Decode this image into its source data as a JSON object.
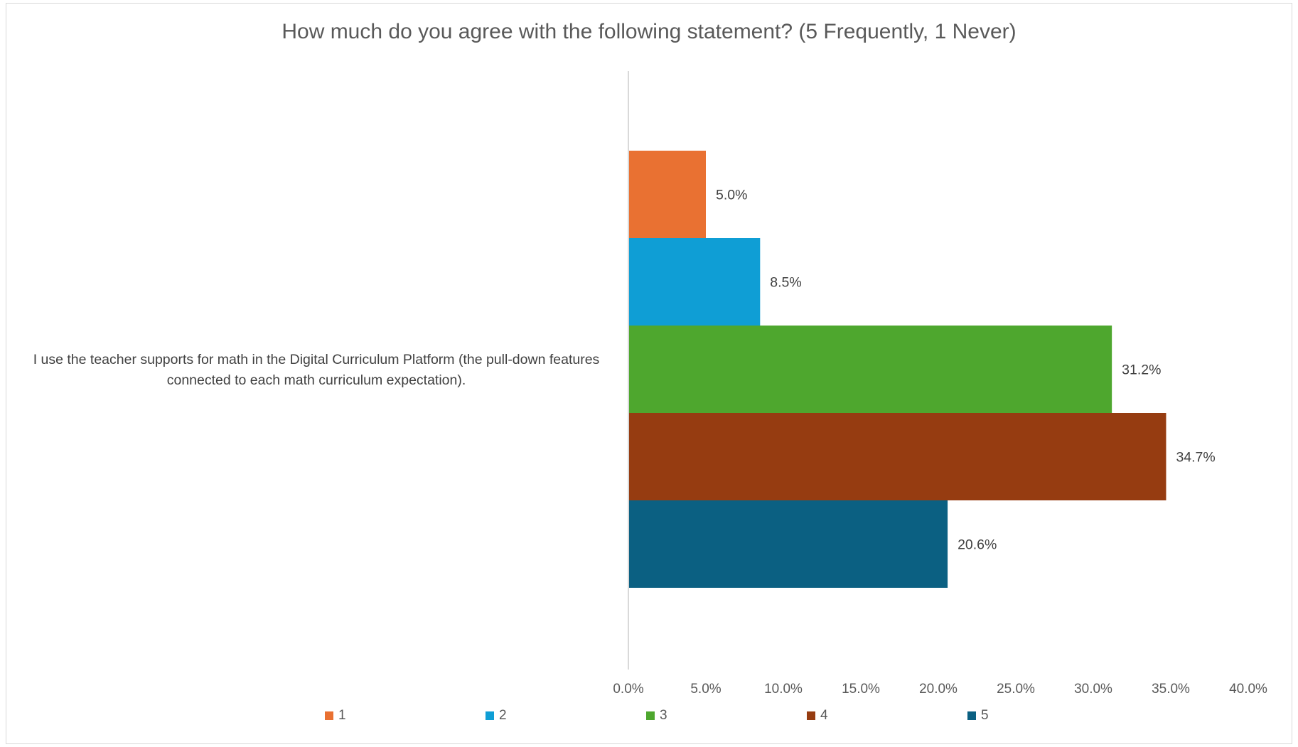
{
  "chart_data": {
    "type": "bar",
    "orientation": "horizontal",
    "title": "How much do you agree with the following statement? (5 Frequently, 1 Never)",
    "categories": [
      "I use the teacher supports for math in the Digital Curriculum Platform (the pull-down features connected to each math curriculum expectation)."
    ],
    "category_label_lines": [
      "I use the teacher supports for math in the Digital Curriculum Platform (the pull-down features",
      "connected to each math curriculum expectation)."
    ],
    "series": [
      {
        "name": "1",
        "values": [
          5.0
        ],
        "label": "5.0%",
        "color": "#E97132"
      },
      {
        "name": "2",
        "values": [
          8.5
        ],
        "label": "8.5%",
        "color": "#0F9ED5"
      },
      {
        "name": "3",
        "values": [
          31.2
        ],
        "label": "31.2%",
        "color": "#4EA72E"
      },
      {
        "name": "4",
        "values": [
          34.7
        ],
        "label": "34.7%",
        "color": "#963C11"
      },
      {
        "name": "5",
        "values": [
          20.6
        ],
        "label": "20.6%",
        "color": "#0B6082"
      }
    ],
    "x_ticks": [
      "0.0%",
      "5.0%",
      "10.0%",
      "15.0%",
      "20.0%",
      "25.0%",
      "30.0%",
      "35.0%",
      "40.0%"
    ],
    "xlim": [
      0,
      40
    ],
    "xlabel": "",
    "ylabel": "",
    "grid": false,
    "legend_position": "bottom"
  }
}
